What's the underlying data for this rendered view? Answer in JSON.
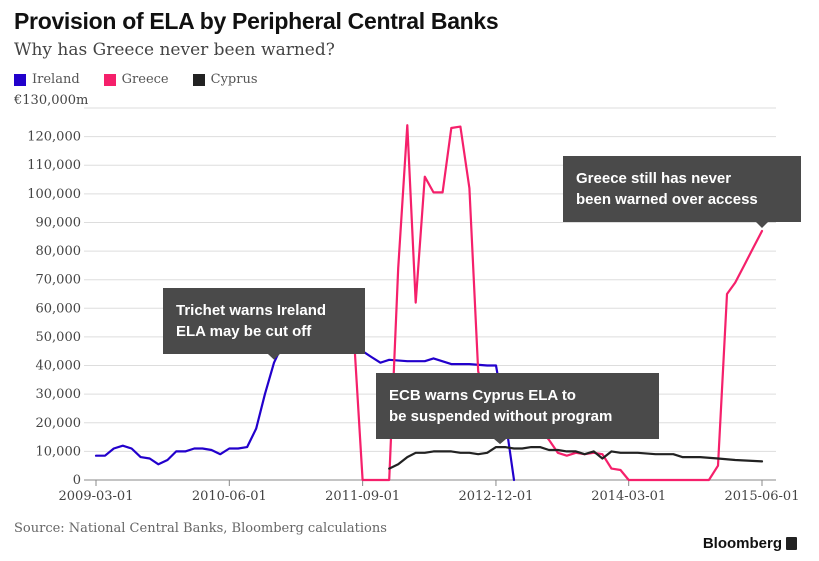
{
  "title": "Provision of ELA by Peripheral Central Banks",
  "subtitle": "Why has Greece never been warned?",
  "source": "Source: National Central Banks, Bloomberg calculations",
  "brand": "Bloomberg",
  "colors": {
    "ireland": "#2200cc",
    "greece": "#f5206b",
    "cyprus": "#222222",
    "annotation_bg": "#4a4a4a",
    "grid": "#dddddd"
  },
  "chart_data": {
    "type": "line",
    "title": "Provision of ELA by Peripheral Central Banks",
    "ylabel": "",
    "ylim": [
      0,
      130000
    ],
    "yticks": [
      0,
      10000,
      20000,
      30000,
      40000,
      50000,
      60000,
      70000,
      80000,
      90000,
      100000,
      110000,
      120000
    ],
    "ytick_labels": [
      "0",
      "10,000",
      "20,000",
      "30,000",
      "40,000",
      "50,000",
      "60,000",
      "70,000",
      "80,000",
      "90,000",
      "100,000",
      "110,000",
      "120,000"
    ],
    "ytop_label": "€130,000m",
    "xlim": [
      "2009-03-01",
      "2015-06-01"
    ],
    "xticks": [
      "2009-03-01",
      "2010-06-01",
      "2011-09-01",
      "2012-12-01",
      "2014-03-01",
      "2015-06-01"
    ],
    "grid": true,
    "legend_position": "top-left",
    "series": [
      {
        "name": "Ireland",
        "color": "#2200cc",
        "points": [
          [
            "2009-03-01",
            8500
          ],
          [
            "2009-04-01",
            8500
          ],
          [
            "2009-05-01",
            11000
          ],
          [
            "2009-06-01",
            12000
          ],
          [
            "2009-07-01",
            11000
          ],
          [
            "2009-08-01",
            8000
          ],
          [
            "2009-09-01",
            7500
          ],
          [
            "2009-10-01",
            5500
          ],
          [
            "2009-11-01",
            7000
          ],
          [
            "2009-12-01",
            10000
          ],
          [
            "2010-01-01",
            10000
          ],
          [
            "2010-02-01",
            11000
          ],
          [
            "2010-03-01",
            11000
          ],
          [
            "2010-04-01",
            10500
          ],
          [
            "2010-05-01",
            9000
          ],
          [
            "2010-06-01",
            11000
          ],
          [
            "2010-07-01",
            11000
          ],
          [
            "2010-08-01",
            11500
          ],
          [
            "2010-09-01",
            18000
          ],
          [
            "2010-10-01",
            30000
          ],
          [
            "2010-11-01",
            41000
          ],
          [
            "2010-12-01",
            47500
          ],
          [
            "2011-01-01",
            47500
          ],
          [
            "2011-02-01",
            66500
          ],
          [
            "2011-03-01",
            64000
          ],
          [
            "2011-04-01",
            55000
          ],
          [
            "2011-05-01",
            51000
          ],
          [
            "2011-06-01",
            54000
          ],
          [
            "2011-07-01",
            53000
          ],
          [
            "2011-08-01",
            50000
          ],
          [
            "2011-09-01",
            45000
          ],
          [
            "2011-10-01",
            43000
          ],
          [
            "2011-11-01",
            41000
          ],
          [
            "2011-12-01",
            42000
          ],
          [
            "2012-02-01",
            41500
          ],
          [
            "2012-04-01",
            41500
          ],
          [
            "2012-05-01",
            42500
          ],
          [
            "2012-07-01",
            40500
          ],
          [
            "2012-09-01",
            40500
          ],
          [
            "2012-11-01",
            40000
          ],
          [
            "2012-12-01",
            40000
          ],
          [
            "2013-01-01",
            22000
          ],
          [
            "2013-02-01",
            0
          ]
        ]
      },
      {
        "name": "Greece",
        "color": "#f5206b",
        "points": [
          [
            "2011-08-01",
            52000
          ],
          [
            "2011-09-01",
            0
          ],
          [
            "2011-10-01",
            0
          ],
          [
            "2011-11-01",
            0
          ],
          [
            "2011-12-01",
            0
          ],
          [
            "2012-01-01",
            74000
          ],
          [
            "2012-02-01",
            124000
          ],
          [
            "2012-03-01",
            62000
          ],
          [
            "2012-04-01",
            106000
          ],
          [
            "2012-05-01",
            100500
          ],
          [
            "2012-06-01",
            100500
          ],
          [
            "2012-07-01",
            123000
          ],
          [
            "2012-08-01",
            123500
          ],
          [
            "2012-09-01",
            102000
          ],
          [
            "2012-10-01",
            38000
          ],
          [
            "2012-11-01",
            26000
          ],
          [
            "2012-12-01",
            23000
          ],
          [
            "2013-01-01",
            32000
          ],
          [
            "2013-02-01",
            23500
          ],
          [
            "2013-03-01",
            25000
          ],
          [
            "2013-04-01",
            20000
          ],
          [
            "2013-05-01",
            18000
          ],
          [
            "2013-06-01",
            14000
          ],
          [
            "2013-07-01",
            9500
          ],
          [
            "2013-08-01",
            8500
          ],
          [
            "2013-09-01",
            9500
          ],
          [
            "2013-10-01",
            9000
          ],
          [
            "2013-11-01",
            9500
          ],
          [
            "2013-12-01",
            9000
          ],
          [
            "2014-01-01",
            4000
          ],
          [
            "2014-02-01",
            3500
          ],
          [
            "2014-03-01",
            0
          ],
          [
            "2014-04-01",
            0
          ],
          [
            "2014-06-01",
            0
          ],
          [
            "2014-08-01",
            0
          ],
          [
            "2014-10-01",
            0
          ],
          [
            "2014-12-01",
            0
          ],
          [
            "2015-01-01",
            5000
          ],
          [
            "2015-02-01",
            65000
          ],
          [
            "2015-03-01",
            69000
          ],
          [
            "2015-04-01",
            75000
          ],
          [
            "2015-05-01",
            81000
          ],
          [
            "2015-06-01",
            87000
          ]
        ]
      },
      {
        "name": "Cyprus",
        "color": "#222222",
        "points": [
          [
            "2011-12-01",
            4000
          ],
          [
            "2012-01-01",
            5500
          ],
          [
            "2012-02-01",
            8000
          ],
          [
            "2012-03-01",
            9500
          ],
          [
            "2012-04-01",
            9500
          ],
          [
            "2012-05-01",
            10000
          ],
          [
            "2012-06-01",
            10000
          ],
          [
            "2012-07-01",
            10000
          ],
          [
            "2012-08-01",
            9500
          ],
          [
            "2012-09-01",
            9500
          ],
          [
            "2012-10-01",
            9000
          ],
          [
            "2012-11-01",
            9500
          ],
          [
            "2012-12-01",
            11500
          ],
          [
            "2013-01-01",
            11500
          ],
          [
            "2013-02-01",
            11000
          ],
          [
            "2013-03-01",
            11000
          ],
          [
            "2013-04-01",
            11500
          ],
          [
            "2013-05-01",
            11500
          ],
          [
            "2013-06-01",
            10500
          ],
          [
            "2013-07-01",
            10500
          ],
          [
            "2013-08-01",
            10000
          ],
          [
            "2013-09-01",
            10000
          ],
          [
            "2013-10-01",
            9000
          ],
          [
            "2013-11-01",
            10000
          ],
          [
            "2013-12-01",
            7500
          ],
          [
            "2014-01-01",
            10000
          ],
          [
            "2014-02-01",
            9500
          ],
          [
            "2014-04-01",
            9500
          ],
          [
            "2014-06-01",
            9000
          ],
          [
            "2014-08-01",
            9000
          ],
          [
            "2014-09-01",
            8000
          ],
          [
            "2014-11-01",
            8000
          ],
          [
            "2015-01-01",
            7500
          ],
          [
            "2015-03-01",
            7000
          ],
          [
            "2015-06-01",
            6500
          ]
        ]
      }
    ],
    "annotations": [
      {
        "lines": [
          "Trichet warns Ireland",
          "ELA may be cut off"
        ],
        "point": [
          "2010-11-01",
          41000
        ]
      },
      {
        "lines": [
          "ECB warns Cyprus ELA to",
          "be suspended without program"
        ],
        "point": [
          "2012-12-15",
          11500
        ]
      },
      {
        "lines": [
          "Greece still has never",
          "been warned over access"
        ],
        "point": [
          "2015-06-01",
          87000
        ]
      }
    ]
  }
}
